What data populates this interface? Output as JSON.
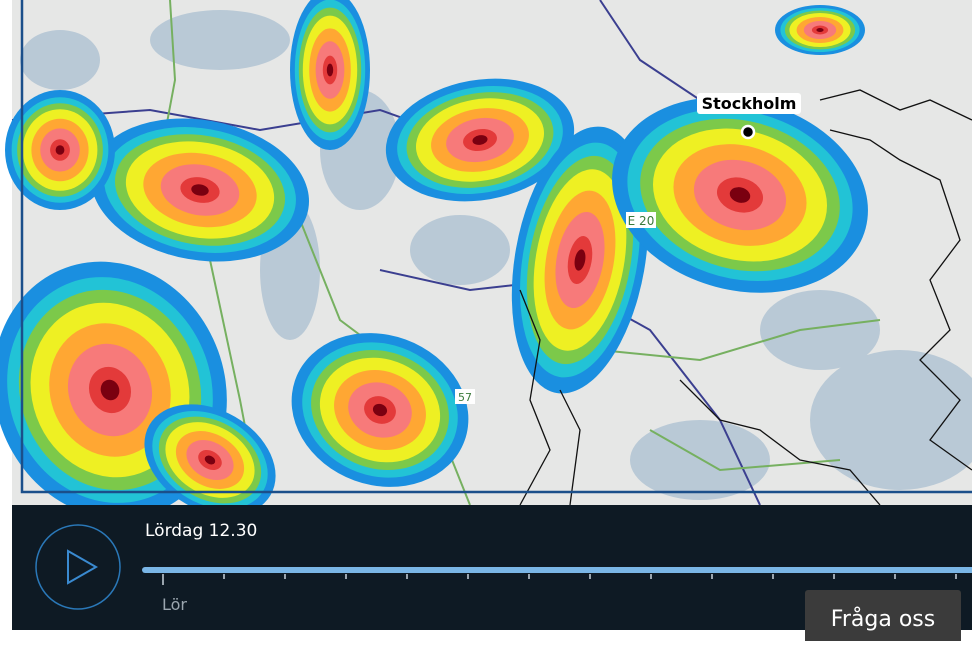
{
  "map": {
    "city_label": "Stockholm",
    "road_labels": [
      "E 20",
      "57"
    ]
  },
  "player": {
    "time_label": "Lördag 12.30",
    "day_tick_label": "Lör"
  },
  "help_button": {
    "label": "Fråga oss"
  }
}
